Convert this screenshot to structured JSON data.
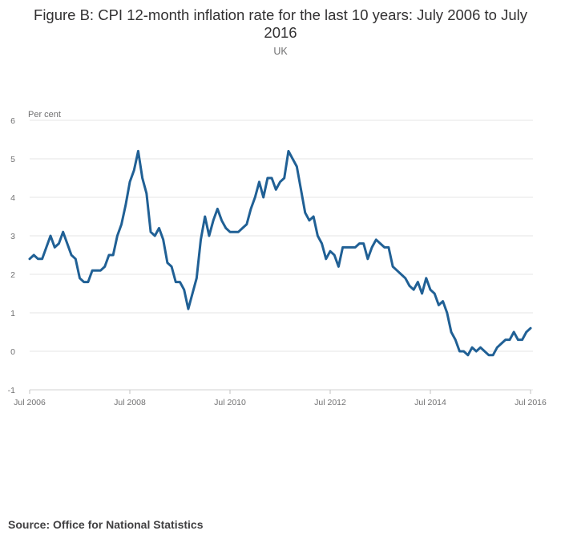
{
  "chart_data": {
    "type": "line",
    "title": "Figure B: CPI 12-month inflation rate for the last 10 years: July 2006 to July 2016",
    "subtitle": "UK",
    "ylabel": "Per cent",
    "xlabel": "",
    "ylim": [
      -1,
      6
    ],
    "yticks": [
      -1,
      0,
      1,
      2,
      3,
      4,
      5,
      6
    ],
    "grid": true,
    "x_start": "Jul 2006",
    "x_end": "Jul 2016",
    "xticks": [
      {
        "index": 0,
        "label": "Jul 2006"
      },
      {
        "index": 24,
        "label": "Jul 2008"
      },
      {
        "index": 48,
        "label": "Jul 2010"
      },
      {
        "index": 72,
        "label": "Jul 2012"
      },
      {
        "index": 96,
        "label": "Jul 2014"
      },
      {
        "index": 120,
        "label": "Jul 2016"
      }
    ],
    "series": [
      {
        "name": "CPI 12-month inflation rate",
        "color": "#206095",
        "values": [
          2.4,
          2.5,
          2.4,
          2.4,
          2.7,
          3.0,
          2.7,
          2.8,
          3.1,
          2.8,
          2.5,
          2.4,
          1.9,
          1.8,
          1.8,
          2.1,
          2.1,
          2.1,
          2.2,
          2.5,
          2.5,
          3.0,
          3.3,
          3.8,
          4.4,
          4.7,
          5.2,
          4.5,
          4.1,
          3.1,
          3.0,
          3.2,
          2.9,
          2.3,
          2.2,
          1.8,
          1.8,
          1.6,
          1.1,
          1.5,
          1.9,
          2.9,
          3.5,
          3.0,
          3.4,
          3.7,
          3.4,
          3.2,
          3.1,
          3.1,
          3.1,
          3.2,
          3.3,
          3.7,
          4.0,
          4.4,
          4.0,
          4.5,
          4.5,
          4.2,
          4.4,
          4.5,
          5.2,
          5.0,
          4.8,
          4.2,
          3.6,
          3.4,
          3.5,
          3.0,
          2.8,
          2.4,
          2.6,
          2.5,
          2.2,
          2.7,
          2.7,
          2.7,
          2.7,
          2.8,
          2.8,
          2.4,
          2.7,
          2.9,
          2.8,
          2.7,
          2.7,
          2.2,
          2.1,
          2.0,
          1.9,
          1.7,
          1.6,
          1.8,
          1.5,
          1.9,
          1.6,
          1.5,
          1.2,
          1.3,
          1.0,
          0.5,
          0.3,
          0.0,
          0.0,
          -0.1,
          0.1,
          0.0,
          0.1,
          0.0,
          -0.1,
          -0.1,
          0.1,
          0.2,
          0.3,
          0.3,
          0.5,
          0.3,
          0.3,
          0.5,
          0.6
        ]
      }
    ]
  },
  "footer": {
    "source": "Source: Office for National Statistics"
  }
}
